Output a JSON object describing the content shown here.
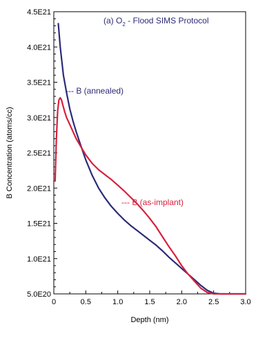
{
  "chart_data": {
    "type": "line",
    "title": {
      "prefix": "(a) O",
      "subscript": "2",
      "suffix": " - Flood SIMS Protocol"
    },
    "xlabel": "Depth (nm)",
    "ylabel": "B Concentration (atoms/cc)",
    "xlim": [
      0,
      3.0
    ],
    "ylim": [
      5e+20,
      4.5e+21
    ],
    "x_ticks": [
      0,
      0.5,
      1.0,
      1.5,
      2.0,
      2.5,
      3.0
    ],
    "x_tick_labels": [
      "0",
      "0.5",
      "1.0",
      "1.5",
      "2.0",
      "2.5",
      "3.0"
    ],
    "y_ticks": [
      5e+20,
      1e+21,
      1.5e+21,
      2e+21,
      2.5e+21,
      3e+21,
      3.5e+21,
      4e+21,
      4.5e+21
    ],
    "y_tick_labels": [
      "5.0E20",
      "1.0E21",
      "1.5E21",
      "2.0E21",
      "2.5E21",
      "3.0E21",
      "3.5E21",
      "4.0E21",
      "4.5E21"
    ],
    "series": [
      {
        "name": "B (annealed)",
        "label_text": "--- B (annealed)",
        "color": "#2b2a78",
        "x": [
          0.07,
          0.1,
          0.15,
          0.2,
          0.25,
          0.3,
          0.35,
          0.4,
          0.5,
          0.6,
          0.7,
          0.8,
          0.9,
          1.0,
          1.1,
          1.2,
          1.3,
          1.4,
          1.5,
          1.6,
          1.7,
          1.8,
          1.9,
          2.0,
          2.1,
          2.2,
          2.3,
          2.4,
          2.5,
          2.6,
          2.8,
          3.0
        ],
        "y": [
          4.33e+21,
          4e+21,
          3.6e+21,
          3.35e+21,
          3.12e+21,
          2.95e+21,
          2.8e+21,
          2.66e+21,
          2.4e+21,
          2.18e+21,
          2e+21,
          1.86e+21,
          1.74e+21,
          1.64e+21,
          1.55e+21,
          1.47e+21,
          1.4e+21,
          1.33e+21,
          1.26e+21,
          1.19e+21,
          1.11e+21,
          1.02e+21,
          9.4e+20,
          8.6e+20,
          7.8e+20,
          7e+20,
          6.2e+20,
          5.5e+20,
          5.1e+20,
          5e+20,
          5e+20,
          5e+20
        ]
      },
      {
        "name": "B (as-implant)",
        "label_text": "--- B (as-implant)",
        "color": "#d8203c",
        "x": [
          0.02,
          0.04,
          0.06,
          0.08,
          0.1,
          0.12,
          0.14,
          0.17,
          0.2,
          0.25,
          0.3,
          0.35,
          0.4,
          0.5,
          0.6,
          0.7,
          0.8,
          0.9,
          1.0,
          1.1,
          1.2,
          1.3,
          1.4,
          1.5,
          1.6,
          1.7,
          1.8,
          1.9,
          2.0,
          2.1,
          2.2,
          2.3,
          2.4,
          2.5,
          2.6,
          2.8,
          3.0
        ],
        "y": [
          2.1e+21,
          2.7e+21,
          3.1e+21,
          3.25e+21,
          3.28e+21,
          3.25e+21,
          3.18e+21,
          3.08e+21,
          3e+21,
          2.9e+21,
          2.8e+21,
          2.7e+21,
          2.62e+21,
          2.47e+21,
          2.35e+21,
          2.26e+21,
          2.19e+21,
          2.12e+21,
          2.04e+21,
          1.96e+21,
          1.87e+21,
          1.78e+21,
          1.68e+21,
          1.57e+21,
          1.45e+21,
          1.31e+21,
          1.17e+21,
          1.04e+21,
          9e+20,
          7.8e+20,
          6.8e+20,
          5.8e+20,
          5.2e+20,
          5e+20,
          5e+20,
          5e+20,
          5e+20
        ]
      }
    ],
    "grid": false,
    "legend": "inline labels"
  }
}
